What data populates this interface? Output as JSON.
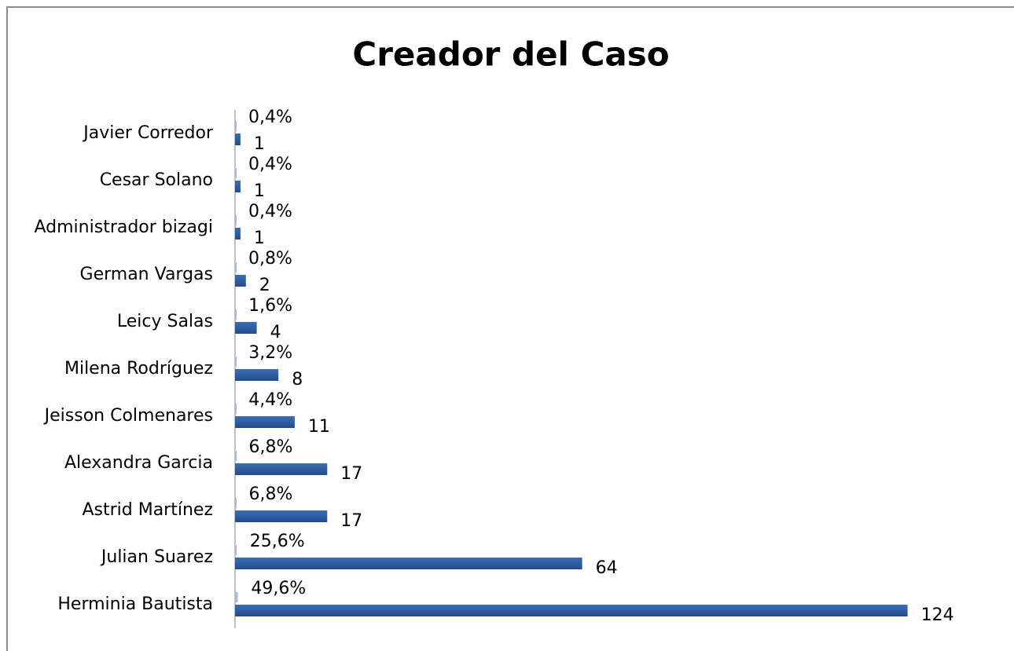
{
  "chart_data": {
    "type": "barh",
    "title": "Creador del Caso",
    "categories": [
      "Herminia Bautista",
      "Julian Suarez",
      "Astrid Martínez",
      "Alexandra Garcia",
      "Jeisson Colmenares",
      "Milena Rodríguez",
      "Leicy Salas",
      "German Vargas",
      "Administrador bizagi",
      "Cesar Solano",
      "Javier Corredor"
    ],
    "series": [
      {
        "color": "#a9b9db",
        "values": [
          0.496,
          0.256,
          0.068,
          0.068,
          0.044,
          0.032,
          0.016,
          0.008,
          0.004,
          0.004,
          0.004
        ],
        "value_labels": [
          "49,6%",
          "25,6%",
          "6,8%",
          "6,8%",
          "4,4%",
          "3,2%",
          "1,6%",
          "0,8%",
          "0,4%",
          "0,4%",
          "0,4%"
        ]
      },
      {
        "color": "#2f5d9f",
        "values": [
          124,
          64,
          17,
          17,
          11,
          8,
          4,
          2,
          1,
          1,
          1
        ]
      }
    ],
    "xlim": [
      0,
      140
    ]
  }
}
